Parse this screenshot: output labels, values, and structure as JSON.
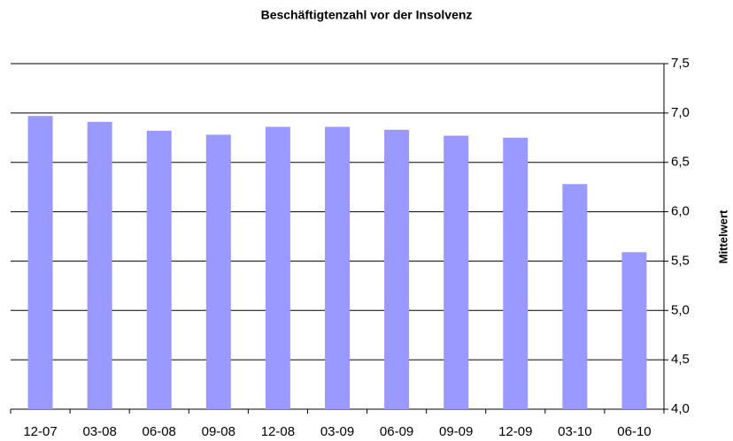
{
  "chart_data": {
    "type": "bar",
    "title": "Beschäftigtenzahl vor der Insolvenz",
    "y_label": "Mittelwert",
    "categories": [
      "12-07",
      "03-08",
      "06-08",
      "09-08",
      "12-08",
      "03-09",
      "06-09",
      "09-09",
      "12-09",
      "03-10",
      "06-10"
    ],
    "values": [
      6.97,
      6.91,
      6.82,
      6.78,
      6.86,
      6.86,
      6.83,
      6.77,
      6.75,
      6.28,
      5.59
    ],
    "color": "#9999ff",
    "ylim": [
      4,
      7.5
    ],
    "yticks": [
      {
        "value": 4,
        "label": "4,0"
      },
      {
        "value": 4.5,
        "label": "4,5"
      },
      {
        "value": 5,
        "label": "5,0"
      },
      {
        "value": 5.5,
        "label": "5,5"
      },
      {
        "value": 6,
        "label": "6,0"
      },
      {
        "value": 6.5,
        "label": "6,5"
      },
      {
        "value": 7,
        "label": "7,0"
      },
      {
        "value": 7.5,
        "label": "7,5"
      }
    ],
    "grid": true,
    "y_axis_side": "right"
  }
}
